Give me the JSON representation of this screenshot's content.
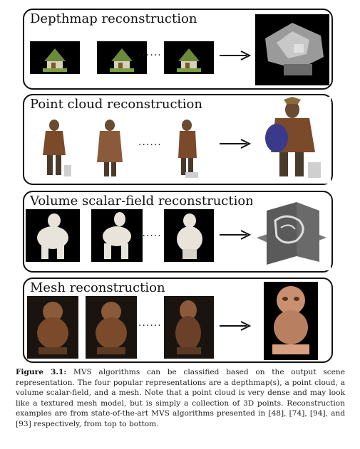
{
  "panels": [
    {
      "title": "Depthmap reconstruction",
      "dots": "......"
    },
    {
      "title": "Point cloud reconstruction",
      "dots": "......"
    },
    {
      "title": "Volume scalar-field reconstruction",
      "dots": "......"
    },
    {
      "title": "Mesh reconstruction",
      "dots": "......"
    }
  ],
  "caption": {
    "label": "Figure 3.1:",
    "text": "MVS algorithms can be classified based on the output scene representation. The four popular representations are a depthmap(s), a point cloud, a volume scalar-field, and a mesh. Note that a point cloud is very dense and may look like a textured mesh model, but is simply a collection of 3D points. Reconstruction examples are from state-of-the-art MVS algorithms presented in [48], [74], [94], and [93] respectively, from top to bottom."
  },
  "colors": {
    "border": "#111111",
    "house_roof": "#6b8a3a",
    "depth_gray": "#9a9a9a",
    "statue_bronze": "#8a5a3a",
    "body_cast": "#e8e4dc",
    "mesh_copper": "#c89070"
  }
}
